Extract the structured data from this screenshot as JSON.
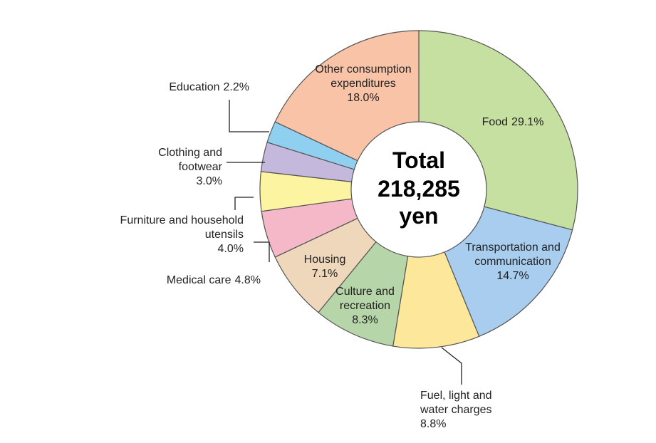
{
  "chart_data": {
    "type": "donut",
    "categories": [
      "Food",
      "Transportation and communication",
      "Fuel, light and water charges",
      "Culture and recreation",
      "Housing",
      "Medical care",
      "Furniture and household utensils",
      "Clothing and footwear",
      "Education",
      "Other consumption expenditures"
    ],
    "values": [
      29.1,
      14.7,
      8.8,
      8.3,
      7.1,
      4.8,
      4.0,
      3.0,
      2.2,
      18.0
    ],
    "value_labels": [
      "29.1%",
      "14.7%",
      "8.8%",
      "8.3%",
      "7.1%",
      "4.8%",
      "4.0%",
      "3.0%",
      "2.2%",
      "18.0%"
    ],
    "colors": [
      "#c6e0a1",
      "#a9cdee",
      "#fde79b",
      "#b6d5a9",
      "#eed7ba",
      "#f5b8c8",
      "#fdf4a2",
      "#c4b9dd",
      "#8fd0f1",
      "#f9c3a8"
    ],
    "center_text": [
      "Total",
      "218,285",
      "yen"
    ]
  }
}
